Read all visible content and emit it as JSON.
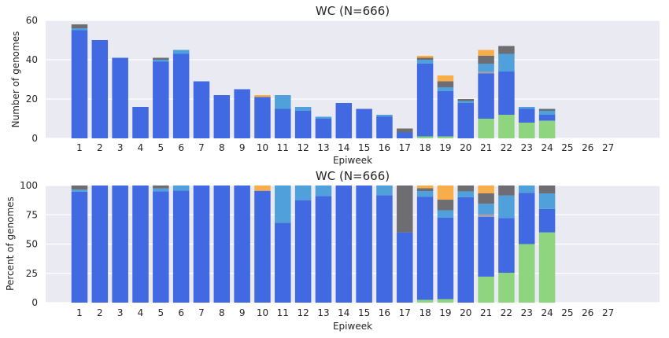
{
  "chart_data": [
    {
      "type": "bar",
      "stacked": true,
      "title": "WC (N=666)",
      "xlabel": "Epiweek",
      "ylabel": "Number of genomes",
      "ylim": [
        0,
        60
      ],
      "yticks": [
        0,
        20,
        40,
        60
      ],
      "grid": true,
      "categories": [
        "1",
        "2",
        "3",
        "4",
        "5",
        "6",
        "7",
        "8",
        "9",
        "10",
        "11",
        "12",
        "13",
        "14",
        "15",
        "16",
        "17",
        "18",
        "19",
        "20",
        "21",
        "22",
        "23",
        "24",
        "25",
        "26",
        "27"
      ],
      "series": [
        {
          "color": "#8fd47f",
          "values": [
            0,
            0,
            0,
            0,
            0,
            0,
            0,
            0,
            0,
            0,
            0,
            0,
            0,
            0,
            0,
            0,
            0,
            1,
            1,
            0,
            10,
            12,
            8,
            9,
            0,
            0,
            0
          ]
        },
        {
          "color": "#4169e1",
          "values": [
            55,
            50,
            41,
            16,
            39,
            43,
            29,
            22,
            25,
            21,
            15,
            14,
            10,
            18,
            15,
            11,
            3,
            37,
            23,
            18,
            23,
            22,
            7,
            3,
            0,
            0,
            0
          ]
        },
        {
          "color": "#9e9eae",
          "values": [
            0,
            0,
            0,
            0,
            0,
            0,
            0,
            0,
            0,
            0,
            0,
            0,
            0,
            0,
            0,
            0,
            0,
            0,
            0,
            0,
            1,
            0,
            0,
            0,
            0,
            0,
            0
          ]
        },
        {
          "color": "#50a0dc",
          "values": [
            1,
            0,
            0,
            0,
            1,
            2,
            0,
            0,
            0,
            0,
            7,
            2,
            1,
            0,
            0,
            1,
            0,
            2,
            2,
            1,
            4,
            9,
            1,
            2,
            0,
            0,
            0
          ]
        },
        {
          "color": "#6e6e72",
          "values": [
            2,
            0,
            0,
            0,
            1,
            0,
            0,
            0,
            0,
            0,
            0,
            0,
            0,
            0,
            0,
            0,
            2,
            1,
            3,
            1,
            4,
            4,
            0,
            1,
            0,
            0,
            0
          ]
        },
        {
          "color": "#f7ad4a",
          "values": [
            0,
            0,
            0,
            0,
            0,
            0,
            0,
            0,
            0,
            1,
            0,
            0,
            0,
            0,
            0,
            0,
            0,
            1,
            3,
            0,
            3,
            0,
            0,
            0,
            0,
            0,
            0
          ]
        }
      ]
    },
    {
      "type": "bar",
      "stacked": true,
      "title": "WC (N=666)",
      "xlabel": "Epiweek",
      "ylabel": "Percent of genomes",
      "ylim": [
        0,
        100
      ],
      "yticks": [
        0,
        25,
        50,
        75,
        100
      ],
      "grid": true,
      "categories": [
        "1",
        "2",
        "3",
        "4",
        "5",
        "6",
        "7",
        "8",
        "9",
        "10",
        "11",
        "12",
        "13",
        "14",
        "15",
        "16",
        "17",
        "18",
        "19",
        "20",
        "21",
        "22",
        "23",
        "24",
        "25",
        "26",
        "27"
      ],
      "series": [
        {
          "color": "#8fd47f",
          "values": [
            0,
            0,
            0,
            0,
            0,
            0,
            0,
            0,
            0,
            0,
            0,
            0,
            0,
            0,
            0,
            0,
            0,
            2.4,
            3,
            0,
            22.2,
            25.5,
            50,
            60,
            0,
            0,
            0
          ]
        },
        {
          "color": "#4169e1",
          "values": [
            94.8,
            100,
            100,
            100,
            95.1,
            95.6,
            100,
            100,
            100,
            95.5,
            68.2,
            87.5,
            90.9,
            100,
            100,
            91.7,
            60,
            88.1,
            69.7,
            90,
            51.1,
            46.8,
            43.8,
            20,
            0,
            0,
            0
          ]
        },
        {
          "color": "#9e9eae",
          "values": [
            0,
            0,
            0,
            0,
            0,
            0,
            0,
            0,
            0,
            0,
            0,
            0,
            0,
            0,
            0,
            0,
            0,
            0,
            0,
            0,
            2.2,
            0,
            0,
            0,
            0,
            0,
            0
          ]
        },
        {
          "color": "#50a0dc",
          "values": [
            1.7,
            0,
            0,
            0,
            2.4,
            4.4,
            0,
            0,
            0,
            0,
            31.8,
            12.5,
            9.1,
            0,
            0,
            8.3,
            0,
            4.8,
            6.1,
            5,
            8.9,
            19.1,
            6.2,
            13.3,
            0,
            0,
            0
          ]
        },
        {
          "color": "#6e6e72",
          "values": [
            3.5,
            0,
            0,
            0,
            2.5,
            0,
            0,
            0,
            0,
            0,
            0,
            0,
            0,
            0,
            0,
            0,
            40,
            2.4,
            9.1,
            5,
            8.9,
            8.6,
            0,
            6.7,
            0,
            0,
            0
          ]
        },
        {
          "color": "#f7ad4a",
          "values": [
            0,
            0,
            0,
            0,
            0,
            0,
            0,
            0,
            0,
            4.5,
            0,
            0,
            0,
            0,
            0,
            0,
            0,
            2.3,
            12.1,
            0,
            6.7,
            0,
            0,
            0,
            0,
            0,
            0
          ]
        }
      ]
    }
  ]
}
